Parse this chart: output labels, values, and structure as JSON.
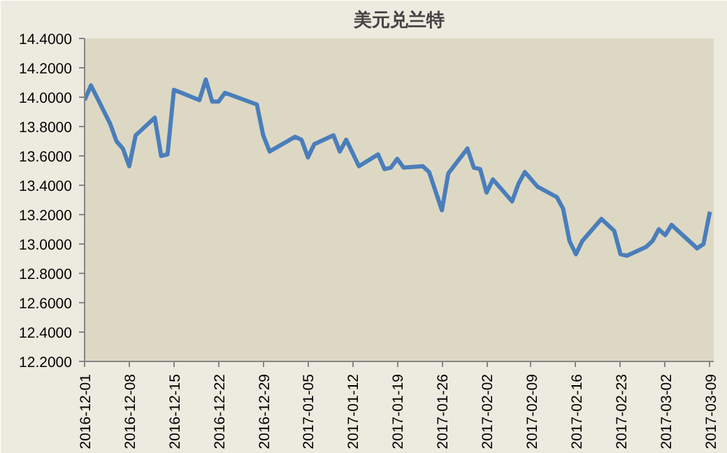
{
  "chart_data": {
    "type": "line",
    "title": "美元兑兰特",
    "x": [
      "2016-12-01",
      "2016-12-02",
      "2016-12-05",
      "2016-12-06",
      "2016-12-07",
      "2016-12-08",
      "2016-12-09",
      "2016-12-12",
      "2016-12-13",
      "2016-12-14",
      "2016-12-15",
      "2016-12-19",
      "2016-12-20",
      "2016-12-21",
      "2016-12-22",
      "2016-12-23",
      "2016-12-28",
      "2016-12-29",
      "2016-12-30",
      "2017-01-03",
      "2017-01-04",
      "2017-01-05",
      "2017-01-06",
      "2017-01-09",
      "2017-01-10",
      "2017-01-11",
      "2017-01-13",
      "2017-01-16",
      "2017-01-17",
      "2017-01-18",
      "2017-01-19",
      "2017-01-20",
      "2017-01-23",
      "2017-01-24",
      "2017-01-26",
      "2017-01-27",
      "2017-01-30",
      "2017-01-31",
      "2017-02-01",
      "2017-02-02",
      "2017-02-03",
      "2017-02-06",
      "2017-02-07",
      "2017-02-08",
      "2017-02-10",
      "2017-02-13",
      "2017-02-14",
      "2017-02-15",
      "2017-02-16",
      "2017-02-17",
      "2017-02-20",
      "2017-02-22",
      "2017-02-23",
      "2017-02-24",
      "2017-02-27",
      "2017-02-28",
      "2017-03-01",
      "2017-03-02",
      "2017-03-03",
      "2017-03-07",
      "2017-03-08",
      "2017-03-09"
    ],
    "series": [
      {
        "color": "#4a7ebb",
        "values": [
          13.98,
          14.08,
          13.82,
          13.7,
          13.65,
          13.53,
          13.74,
          13.86,
          13.6,
          13.61,
          14.05,
          13.98,
          14.12,
          13.97,
          13.97,
          14.03,
          13.95,
          13.74,
          13.63,
          13.73,
          13.71,
          13.59,
          13.68,
          13.74,
          13.63,
          13.71,
          13.53,
          13.61,
          13.51,
          13.52,
          13.58,
          13.52,
          13.53,
          13.49,
          13.23,
          13.48,
          13.65,
          13.52,
          13.51,
          13.35,
          13.44,
          13.29,
          13.41,
          13.49,
          13.39,
          13.32,
          13.24,
          13.02,
          12.93,
          13.02,
          13.17,
          13.09,
          12.93,
          12.92,
          12.98,
          13.02,
          13.1,
          13.06,
          13.13,
          12.97,
          13.0,
          13.22
        ]
      }
    ],
    "xlim": [
      "2016-12-01",
      "2017-03-09"
    ],
    "xticks": [
      "2016-12-01",
      "2016-12-08",
      "2016-12-15",
      "2016-12-22",
      "2016-12-29",
      "2017-01-05",
      "2017-01-12",
      "2017-01-19",
      "2017-01-26",
      "2017-02-02",
      "2017-02-09",
      "2017-02-16",
      "2017-02-23",
      "2017-03-02",
      "2017-03-09"
    ],
    "ylim": [
      12.2,
      14.4
    ],
    "yticks": [
      {
        "value": 12.2,
        "label": "12.2000"
      },
      {
        "value": 12.4,
        "label": "12.4000"
      },
      {
        "value": 12.6,
        "label": "12.6000"
      },
      {
        "value": 12.8,
        "label": "12.8000"
      },
      {
        "value": 13.0,
        "label": "13.0000"
      },
      {
        "value": 13.2,
        "label": "13.2000"
      },
      {
        "value": 13.4,
        "label": "13.4000"
      },
      {
        "value": 13.6,
        "label": "13.6000"
      },
      {
        "value": 13.8,
        "label": "13.8000"
      },
      {
        "value": 14.0,
        "label": "14.0000"
      },
      {
        "value": 14.2,
        "label": "14.2000"
      },
      {
        "value": 14.4,
        "label": "14.4000"
      }
    ],
    "marker": "none",
    "line_style": "solid"
  }
}
